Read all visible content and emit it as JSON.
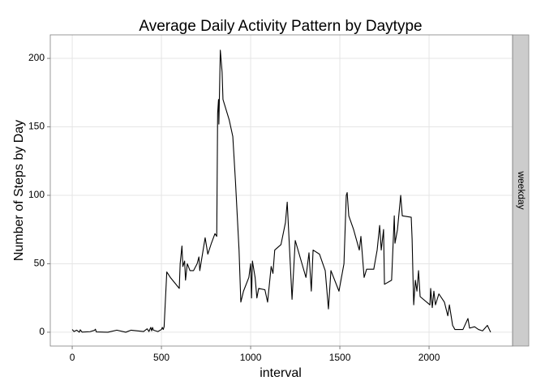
{
  "chart_data": {
    "type": "line",
    "title": "Average Daily Activity Pattern by Daytype",
    "x_label": "interval",
    "y_label": "Number of Steps by Day",
    "facet_label": "weekday",
    "color": "#000000",
    "grid": true,
    "xlim": [
      -123,
      2468
    ],
    "ylim": [
      -10.1,
      217.2
    ],
    "xticks": [
      0,
      500,
      1000,
      1500,
      2000
    ],
    "yticks": [
      0,
      50,
      100,
      150,
      200
    ],
    "x": [
      0,
      10,
      25,
      40,
      45,
      55,
      100,
      125,
      130,
      135,
      200,
      250,
      300,
      330,
      400,
      420,
      430,
      440,
      445,
      450,
      455,
      480,
      500,
      505,
      510,
      515,
      530,
      550,
      600,
      605,
      615,
      620,
      630,
      635,
      645,
      660,
      680,
      700,
      710,
      715,
      730,
      745,
      760,
      780,
      800,
      810,
      815,
      820,
      822,
      830,
      840,
      845,
      880,
      900,
      915,
      935,
      945,
      960,
      990,
      1000,
      1005,
      1010,
      1025,
      1035,
      1045,
      1080,
      1095,
      1115,
      1125,
      1135,
      1170,
      1195,
      1205,
      1232,
      1250,
      1310,
      1327,
      1340,
      1350,
      1386,
      1418,
      1436,
      1450,
      1495,
      1523,
      1536,
      1541,
      1550,
      1577,
      1609,
      1618,
      1636,
      1650,
      1690,
      1709,
      1723,
      1732,
      1745,
      1750,
      1790,
      1805,
      1809,
      1823,
      1841,
      1850,
      1900,
      1905,
      1910,
      1914,
      1923,
      1932,
      1941,
      1950,
      2005,
      2009,
      2018,
      2027,
      2036,
      2055,
      2086,
      2105,
      2114,
      2132,
      2145,
      2190,
      2218,
      2227,
      2255,
      2277,
      2300,
      2327,
      2345
    ],
    "values": [
      2,
      0.5,
      1.5,
      0,
      1.8,
      0.1,
      0.4,
      1.4,
      2.2,
      0.2,
      0,
      1.5,
      0,
      1.5,
      0.5,
      2.5,
      0.5,
      3.5,
      1,
      3.5,
      1.5,
      0.5,
      2,
      3.5,
      2,
      4,
      44,
      40,
      32,
      50,
      63,
      48,
      52,
      38,
      50,
      45,
      45,
      50,
      55,
      45,
      57,
      69,
      57,
      65,
      72,
      70,
      160,
      170,
      152,
      206,
      190,
      170,
      155,
      143,
      110,
      60,
      22,
      30,
      40,
      50,
      25,
      52,
      40,
      25,
      32,
      31,
      22,
      48,
      43,
      60,
      64,
      80,
      95,
      24,
      67,
      40,
      58,
      30,
      60,
      57,
      45,
      17,
      45,
      30,
      50,
      100,
      102,
      85,
      75,
      60,
      70,
      40,
      46,
      46,
      60,
      78,
      60,
      75,
      35,
      38,
      85,
      65,
      75,
      100,
      85,
      84,
      68,
      40,
      20,
      38,
      30,
      45,
      26,
      20,
      32,
      18,
      30,
      20,
      28,
      22,
      12,
      20,
      5,
      2,
      2,
      10,
      3,
      4,
      2,
      1,
      5,
      0
    ]
  }
}
